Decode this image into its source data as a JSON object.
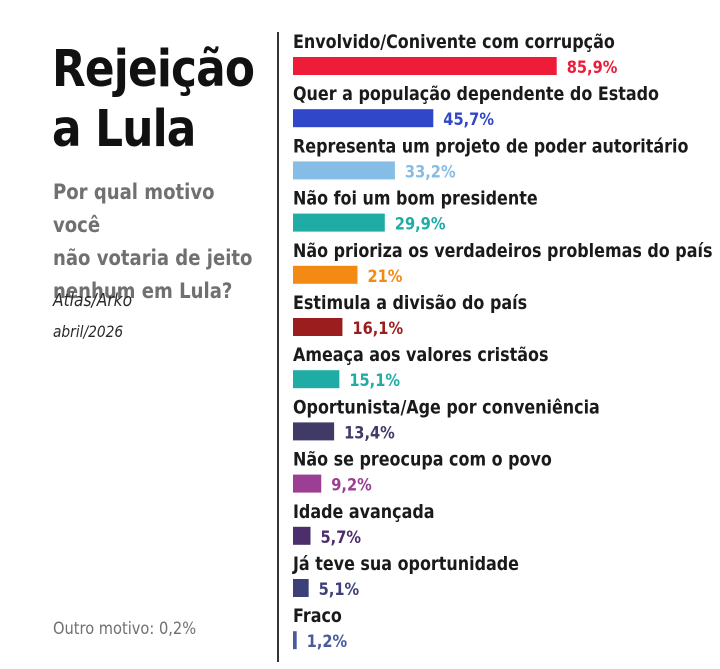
{
  "header": {
    "title_line1": "Rejeição",
    "title_line2": "a Lula",
    "subtitle_line1": "Por qual motivo você",
    "subtitle_line2": "não votaria de jeito",
    "subtitle_line3": "nenhum em Lula?",
    "source": "Atlas/Arko",
    "date": "abril/2026"
  },
  "footer": {
    "other_reason": "Outro motivo: 0,2%"
  },
  "chart_data": {
    "type": "bar",
    "orientation": "horizontal",
    "title": "Rejeição a Lula",
    "subtitle": "Por qual motivo você não votaria de jeito nenhum em Lula?",
    "unit": "%",
    "categories": [
      "Envolvido/Conivente com corrupção",
      "Quer a população dependente do Estado",
      "Representa um projeto de poder autoritário",
      "Não foi um bom presidente",
      "Não prioriza os verdadeiros problemas do país",
      "Estimula a divisão do país",
      "Ameaça aos valores cristãos",
      "Oportunista/Age por conveniência",
      "Não se preocupa com o povo",
      "Idade avançada",
      "Já teve sua oportunidade",
      "Fraco"
    ],
    "values": [
      85.9,
      45.7,
      33.2,
      29.9,
      21,
      16.1,
      15.1,
      13.4,
      9.2,
      5.7,
      5.1,
      1.2
    ],
    "value_labels": [
      "85,9%",
      "45,7%",
      "33,2%",
      "29,9%",
      "21%",
      "16,1%",
      "15,1%",
      "13,4%",
      "9,2%",
      "5,7%",
      "5,1%",
      "1,2%"
    ],
    "colors": [
      "#ee1c39",
      "#2f47c8",
      "#85bde6",
      "#1eaca4",
      "#f28a14",
      "#9b1d1d",
      "#1eaca4",
      "#3f3a66",
      "#9c3e93",
      "#4b2e6b",
      "#3c3f78",
      "#4a5a9a"
    ],
    "label_colors": [
      "#ee1c39",
      "#2f47c8",
      "#85bde6",
      "#1eaca4",
      "#f28a14",
      "#9b1d1d",
      "#1eaca4",
      "#3f3a66",
      "#9c3e93",
      "#4b2e6b",
      "#3c3f78",
      "#4a5a9a"
    ],
    "xlim": [
      0,
      100
    ],
    "grid": false,
    "legend": "none"
  }
}
